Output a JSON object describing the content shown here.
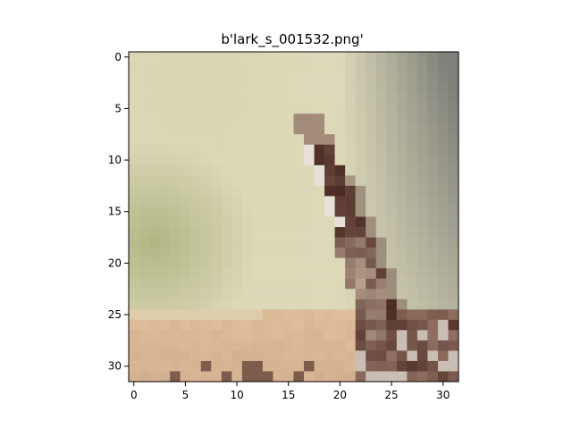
{
  "figure": {
    "title": "b'lark_s_001532.png'",
    "image": {
      "description_icon": "pixelated-bird-image",
      "grid_size": 32
    },
    "x_axis": {
      "ticks": [
        "0",
        "5",
        "10",
        "15",
        "20",
        "25",
        "30"
      ],
      "tick_values": [
        0,
        5,
        10,
        15,
        20,
        25,
        30
      ]
    },
    "y_axis": {
      "ticks": [
        "0",
        "5",
        "10",
        "15",
        "20",
        "25",
        "30"
      ],
      "tick_values": [
        0,
        5,
        10,
        15,
        20,
        25,
        30
      ]
    }
  },
  "colors": {
    "background": "#ffffff",
    "axis": "#000000",
    "sky_light": "#d9d6b4",
    "sky_green": "#a8b07a",
    "sky_grey": "#8e8f7d",
    "bird_dark": "#4a2a22",
    "bird_light": "#e8e2d6",
    "ground_peach": "#e3bf9b",
    "ground_dark": "#5a3b35"
  }
}
